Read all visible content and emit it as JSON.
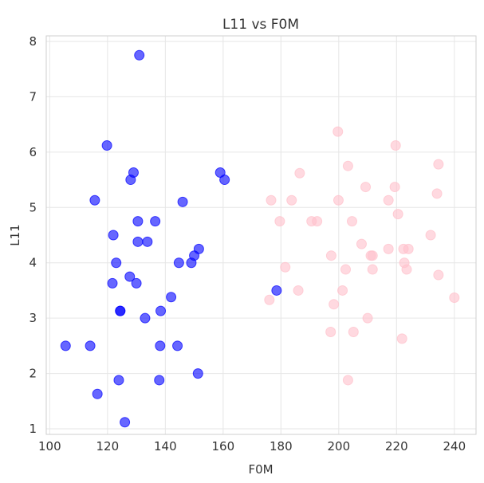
{
  "chart_data": {
    "type": "scatter",
    "title": "L11 vs F0M",
    "xlabel": "F0M",
    "ylabel": "L11",
    "xlim": [
      98.8,
      247.5
    ],
    "ylim": [
      0.9,
      8.1
    ],
    "xticks": [
      100,
      120,
      140,
      160,
      180,
      200,
      220,
      240
    ],
    "yticks": [
      1,
      2,
      3,
      4,
      5,
      6,
      7,
      8
    ],
    "grid": true,
    "series": [
      {
        "name": "blue",
        "color": "#0000ff",
        "opacity": 0.6,
        "points": [
          [
            131,
            7.75
          ],
          [
            119.8,
            6.12
          ],
          [
            129,
            5.63
          ],
          [
            128,
            5.5
          ],
          [
            115.6,
            5.13
          ],
          [
            146,
            5.1
          ],
          [
            159,
            5.63
          ],
          [
            160.5,
            5.5
          ],
          [
            130.5,
            4.75
          ],
          [
            136.5,
            4.75
          ],
          [
            122,
            4.5
          ],
          [
            130.5,
            4.38
          ],
          [
            133.8,
            4.38
          ],
          [
            151.6,
            4.25
          ],
          [
            150,
            4.13
          ],
          [
            149,
            4.0
          ],
          [
            123,
            4.0
          ],
          [
            144.7,
            4.0
          ],
          [
            127.7,
            3.75
          ],
          [
            121.7,
            3.63
          ],
          [
            130,
            3.63
          ],
          [
            142,
            3.38
          ],
          [
            124.4,
            3.13
          ],
          [
            124.4,
            3.13
          ],
          [
            138.4,
            3.13
          ],
          [
            133,
            3.0
          ],
          [
            105.5,
            2.5
          ],
          [
            114,
            2.5
          ],
          [
            138.2,
            2.5
          ],
          [
            144.2,
            2.5
          ],
          [
            151.3,
            2.0
          ],
          [
            123.9,
            1.88
          ],
          [
            137.9,
            1.88
          ],
          [
            116.5,
            1.63
          ],
          [
            126,
            1.12
          ],
          [
            178.5,
            3.5
          ]
        ]
      },
      {
        "name": "pink",
        "color": "#ffc0cb",
        "opacity": 0.6,
        "points": [
          [
            199.7,
            6.37
          ],
          [
            219.7,
            6.12
          ],
          [
            203.2,
            5.75
          ],
          [
            234.5,
            5.78
          ],
          [
            186.5,
            5.62
          ],
          [
            209.3,
            5.37
          ],
          [
            219.4,
            5.37
          ],
          [
            234,
            5.25
          ],
          [
            176.6,
            5.13
          ],
          [
            183.7,
            5.13
          ],
          [
            199.9,
            5.13
          ],
          [
            217.2,
            5.13
          ],
          [
            220.5,
            4.88
          ],
          [
            179.6,
            4.75
          ],
          [
            190.6,
            4.75
          ],
          [
            192.5,
            4.75
          ],
          [
            204.6,
            4.75
          ],
          [
            231.8,
            4.5
          ],
          [
            207.9,
            4.34
          ],
          [
            197.4,
            4.13
          ],
          [
            211.1,
            4.13
          ],
          [
            211.7,
            4.13
          ],
          [
            217.2,
            4.25
          ],
          [
            222.4,
            4.25
          ],
          [
            224.1,
            4.25
          ],
          [
            222.7,
            4.0
          ],
          [
            223.5,
            3.88
          ],
          [
            211.7,
            3.88
          ],
          [
            202.4,
            3.88
          ],
          [
            181.5,
            3.92
          ],
          [
            234.5,
            3.78
          ],
          [
            186,
            3.5
          ],
          [
            201.3,
            3.5
          ],
          [
            176,
            3.33
          ],
          [
            240,
            3.37
          ],
          [
            198.3,
            3.25
          ],
          [
            210,
            3.0
          ],
          [
            197.2,
            2.75
          ],
          [
            205.1,
            2.75
          ],
          [
            221.9,
            2.63
          ],
          [
            203.2,
            1.88
          ]
        ]
      }
    ]
  }
}
